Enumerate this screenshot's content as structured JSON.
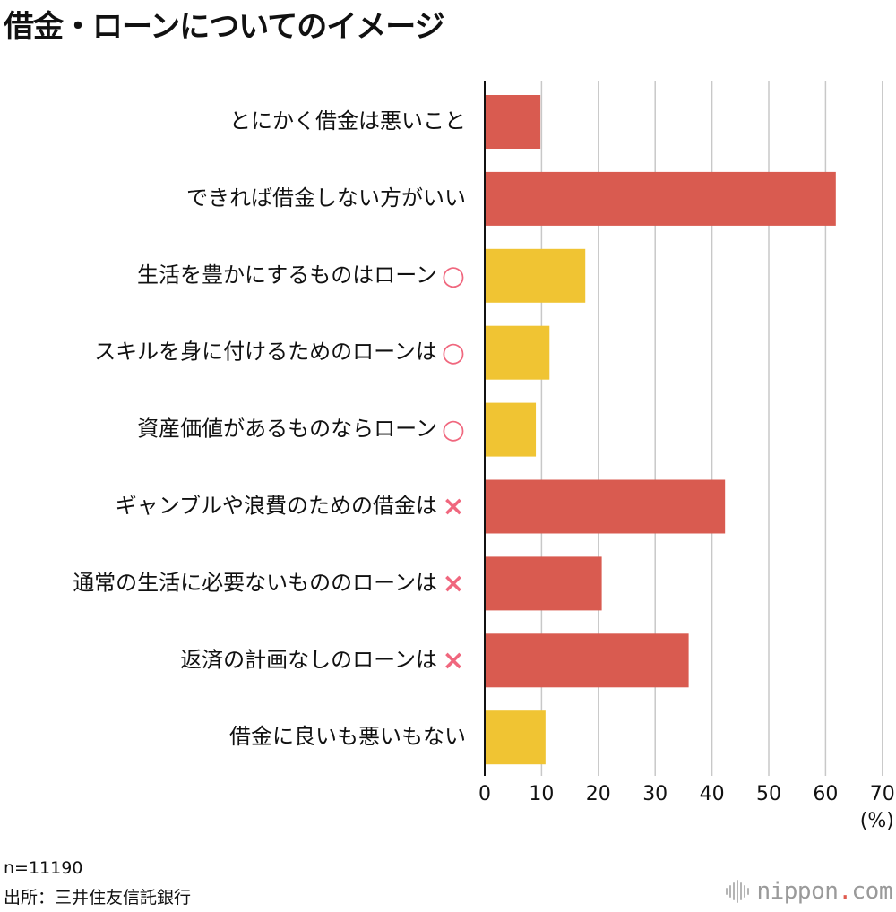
{
  "header": {
    "title": "借金・ローンについてのイメージ"
  },
  "chart_data": {
    "type": "bar",
    "orientation": "horizontal",
    "title": "借金・ローンについてのイメージ",
    "categories": [
      "とにかく借金は悪いこと",
      "できれば借金しない方がいい",
      "生活を豊かにするものはローン",
      "スキルを身に付けるためのローンは",
      "資産価値があるものならローン",
      "ギャンブルや浪費のための借金は",
      "通常の生活に必要ないもののローンは",
      "返済の計画なしのローンは",
      "借金に良いも悪いもない"
    ],
    "marks": [
      "",
      "",
      "○",
      "○",
      "○",
      "×",
      "×",
      "×",
      ""
    ],
    "values": [
      9.8,
      61.8,
      17.7,
      11.4,
      9.0,
      42.3,
      20.6,
      35.9,
      10.7
    ],
    "bar_colors": [
      "#d95b50",
      "#d95b50",
      "#f0c433",
      "#f0c433",
      "#f0c433",
      "#d95b50",
      "#d95b50",
      "#d95b50",
      "#f0c433"
    ],
    "mark_color": "#f0677e",
    "xlim": [
      0,
      70
    ],
    "xticks": [
      0,
      10,
      20,
      30,
      40,
      50,
      60,
      70
    ],
    "xlabel": "(%)",
    "grid": true
  },
  "footer": {
    "sample_size": "n=11190",
    "source": "出所：三井住友信託銀行",
    "brand": "nippon",
    "brand_dot": ".",
    "brand_suffix": "com"
  }
}
